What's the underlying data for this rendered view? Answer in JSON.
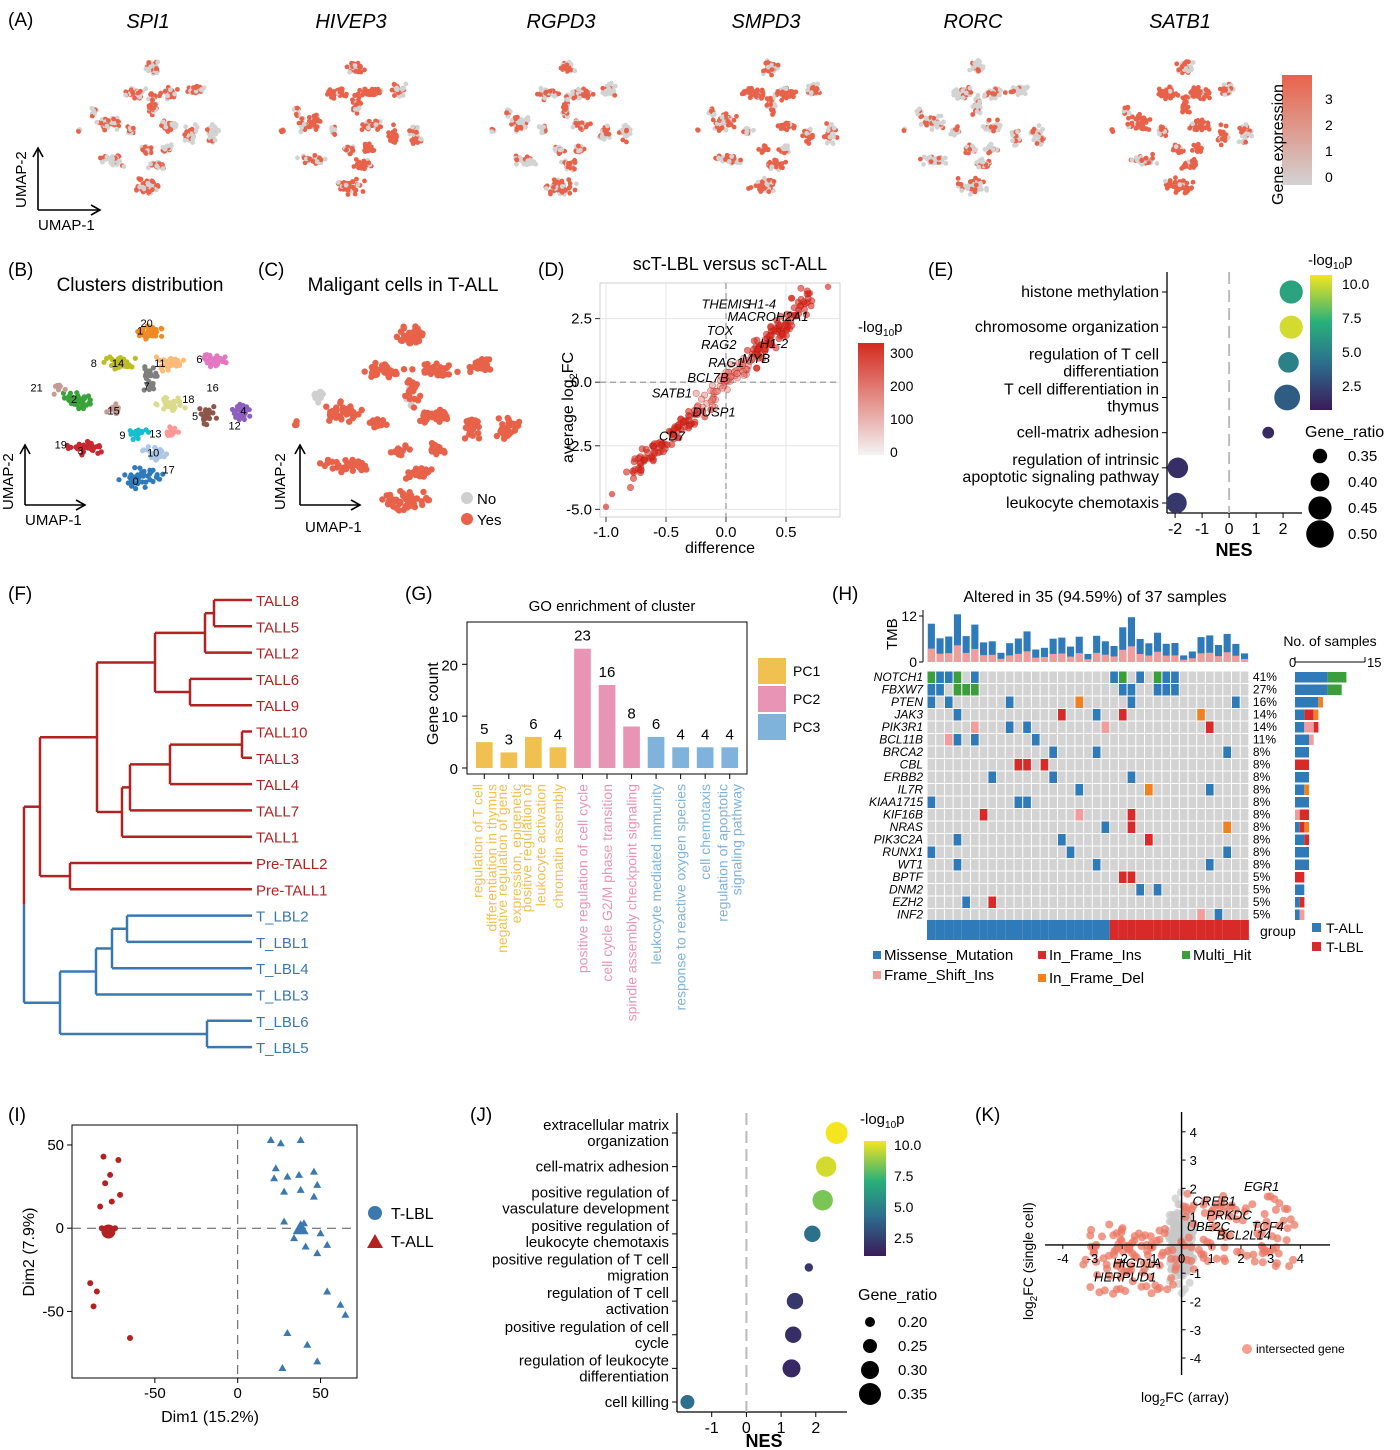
{
  "panel_letters": [
    "(A)",
    "(B)",
    "(C)",
    "(D)",
    "(E)",
    "(F)",
    "(G)",
    "(H)",
    "(I)",
    "(J)",
    "(K)"
  ],
  "colors": {
    "expr_high": "#e8624a",
    "expr_low": "#d3d3d3",
    "tall": "#b22222",
    "tlbl": "#3b78b0",
    "pc1": "#f0c050",
    "pc2": "#e895b5",
    "pc3": "#7fb3dc",
    "missense": "#2f7ab8",
    "frameshift": "#f29c9c",
    "inframe_ins": "#d92a2a",
    "inframe_del": "#f08020",
    "multi": "#3a9e3a",
    "grey_cell": "#d3d3d3"
  },
  "panelA": {
    "genes": [
      "SPI1",
      "HIVEP3",
      "RGPD3",
      "SMPD3",
      "RORC",
      "SATB1"
    ],
    "xlabel": "UMAP-1",
    "ylabel": "UMAP-2",
    "legend_title": "Gene expression",
    "legend_ticks": [
      "3",
      "2",
      "1",
      "0"
    ]
  },
  "panelB": {
    "title": "Clusters distribution",
    "xlabel": "UMAP-1",
    "ylabel": "UMAP-2",
    "clusters": [
      "0",
      "1",
      "2",
      "3",
      "4",
      "5",
      "6",
      "7",
      "8",
      "9",
      "10",
      "11",
      "12",
      "13",
      "14",
      "15",
      "16",
      "17",
      "18",
      "19",
      "20",
      "21"
    ]
  },
  "panelC": {
    "title": "Maligant cells in T-ALL",
    "xlabel": "UMAP-1",
    "ylabel": "UMAP-2",
    "legend": [
      "No",
      "Yes"
    ]
  },
  "chart_data": [
    {
      "panel": "D",
      "type": "scatter",
      "title": "scT-LBL versus scT-ALL",
      "xlabel": "difference",
      "ylabel": "average log2FC",
      "xlim": [
        -1.05,
        0.95
      ],
      "ylim": [
        -5.3,
        3.9
      ],
      "xticks": [
        "-1.0",
        "-0.5",
        "0.0",
        "0.5"
      ],
      "yticks": [
        "2.5",
        "0.0",
        "-2.5",
        "-5.0"
      ],
      "color_title": "-log10p",
      "color_ticks": [
        "300",
        "200",
        "100",
        "0"
      ],
      "labels": [
        {
          "gene": "THEMIS",
          "x": 0.0,
          "y": 2.9
        },
        {
          "gene": "H1-4",
          "x": 0.3,
          "y": 2.9
        },
        {
          "gene": "MACROH2A1",
          "x": 0.35,
          "y": 2.4
        },
        {
          "gene": "TOX",
          "x": -0.05,
          "y": 1.85
        },
        {
          "gene": "RAG2",
          "x": -0.06,
          "y": 1.3
        },
        {
          "gene": "H1-2",
          "x": 0.4,
          "y": 1.35
        },
        {
          "gene": "RAG1",
          "x": 0.0,
          "y": 0.6
        },
        {
          "gene": "MYB",
          "x": 0.25,
          "y": 0.75
        },
        {
          "gene": "BCL7B",
          "x": -0.15,
          "y": 0.0
        },
        {
          "gene": "SATB1",
          "x": -0.45,
          "y": -0.6
        },
        {
          "gene": "DUSP1",
          "x": -0.1,
          "y": -1.35
        },
        {
          "gene": "CD7",
          "x": -0.45,
          "y": -2.3
        }
      ]
    },
    {
      "panel": "E",
      "type": "scatter",
      "xlabel": "NES",
      "xlim": [
        -2.3,
        2.7
      ],
      "xticks": [
        "-2",
        "-1",
        "0",
        "1",
        "2"
      ],
      "color_title": "-log10p",
      "color_ticks": [
        "10.0",
        "7.5",
        "5.0",
        "2.5"
      ],
      "size_title": "Gene_ratio",
      "size_ticks": [
        "0.35",
        "0.40",
        "0.45",
        "0.50"
      ],
      "terms": [
        {
          "l1": "histone methylation",
          "l2": "",
          "nes": 2.3,
          "logp": 6.5,
          "ratio": 0.45
        },
        {
          "l1": "chromosome organization",
          "l2": "",
          "nes": 2.3,
          "logp": 9.5,
          "ratio": 0.45
        },
        {
          "l1": "regulation of T cell",
          "l2": "differentiation",
          "nes": 2.2,
          "logp": 5.2,
          "ratio": 0.42
        },
        {
          "l1": "T cell differentiation in",
          "l2": "thymus",
          "nes": 2.15,
          "logp": 3.8,
          "ratio": 0.48
        },
        {
          "l1": "cell-matrix adhesion",
          "l2": "",
          "nes": 1.45,
          "logp": 2.0,
          "ratio": 0.32
        },
        {
          "l1": "regulation of intrinsic",
          "l2": "apoptotic signaling pathway",
          "nes": -1.9,
          "logp": 2.2,
          "ratio": 0.42
        },
        {
          "l1": "leukocyte chemotaxis",
          "l2": "",
          "nes": -1.95,
          "logp": 2.5,
          "ratio": 0.42
        }
      ]
    },
    {
      "panel": "G",
      "type": "bar",
      "title": "GO enrichment of cluster",
      "ylabel": "Gene count",
      "ylim": [
        0,
        27
      ],
      "yticks": [
        "0",
        "10",
        "20"
      ],
      "legend": [
        "PC1",
        "PC2",
        "PC3"
      ],
      "categories": [
        {
          "l1": "regulation of T cell",
          "l2": "differentiation in thymus",
          "v": 5,
          "g": "PC1"
        },
        {
          "l1": "negative regulation of gene",
          "l2": "expression, epigenetic",
          "v": 3,
          "g": "PC1"
        },
        {
          "l1": "positive regulation of",
          "l2": "leukocyte activation",
          "v": 6,
          "g": "PC1"
        },
        {
          "l1": "chromatin assembly",
          "l2": "",
          "v": 4,
          "g": "PC1"
        },
        {
          "l1": "positive regulation of cell cycle",
          "l2": "",
          "v": 23,
          "g": "PC2"
        },
        {
          "l1": "cell cycle G2/M phase transition",
          "l2": "",
          "v": 16,
          "g": "PC2"
        },
        {
          "l1": "spindle assembly checkpoint signaling",
          "l2": "",
          "v": 8,
          "g": "PC2"
        },
        {
          "l1": "leukocyte mediated immunity",
          "l2": "",
          "v": 6,
          "g": "PC3"
        },
        {
          "l1": "response to reactive oxygen species",
          "l2": "",
          "v": 4,
          "g": "PC3"
        },
        {
          "l1": "cell chemotaxis",
          "l2": "",
          "v": 4,
          "g": "PC3"
        },
        {
          "l1": "regulation of apoptotic",
          "l2": "signaling pathway",
          "v": 4,
          "g": "PC3"
        }
      ]
    },
    {
      "panel": "I",
      "type": "scatter",
      "xlabel": "Dim1 (15.2%)",
      "ylabel": "Dim2 (7.9%)",
      "xlim": [
        -100,
        72
      ],
      "ylim": [
        -90,
        62
      ],
      "xticks": [
        "-50",
        "0",
        "50"
      ],
      "yticks": [
        "50",
        "0",
        "-50"
      ],
      "legend": [
        "T-LBL",
        "T-ALL"
      ],
      "tall": [
        [
          -81,
          43
        ],
        [
          -80,
          27
        ],
        [
          -72,
          41
        ],
        [
          -77,
          32
        ],
        [
          -76,
          16
        ],
        [
          -71,
          20
        ],
        [
          -83,
          13
        ],
        [
          -82,
          0
        ],
        [
          -78,
          -2
        ],
        [
          -74,
          0
        ],
        [
          -89,
          -33
        ],
        [
          -85,
          -38
        ],
        [
          -87,
          -47
        ],
        [
          -65,
          -66
        ]
      ],
      "tall_centroid": [
        -78,
        -2
      ],
      "tlbl": [
        [
          20,
          53
        ],
        [
          26,
          51
        ],
        [
          38,
          53
        ],
        [
          23,
          36
        ],
        [
          30,
          31
        ],
        [
          22,
          30
        ],
        [
          37,
          32
        ],
        [
          38,
          23
        ],
        [
          46,
          34
        ],
        [
          48,
          26
        ],
        [
          28,
          22
        ],
        [
          46,
          19
        ],
        [
          28,
          4
        ],
        [
          34,
          -6
        ],
        [
          40,
          3
        ],
        [
          41,
          -11
        ],
        [
          50,
          -3
        ],
        [
          48,
          -15
        ],
        [
          54,
          -10
        ],
        [
          54,
          -38
        ],
        [
          62,
          -46
        ],
        [
          65,
          -52
        ],
        [
          30,
          -63
        ],
        [
          42,
          -70
        ],
        [
          48,
          -80
        ],
        [
          27,
          -84
        ]
      ],
      "tlbl_centroid": [
        38,
        0
      ]
    },
    {
      "panel": "J",
      "type": "scatter",
      "xlabel": "NES",
      "xlim": [
        -2.0,
        2.9
      ],
      "xticks": [
        "-1",
        "0",
        "1",
        "2"
      ],
      "color_title": "-log10p",
      "color_ticks": [
        "10.0",
        "7.5",
        "5.0",
        "2.5"
      ],
      "size_title": "Gene_ratio",
      "size_ticks": [
        "0.20",
        "0.25",
        "0.30",
        "0.35"
      ],
      "terms": [
        {
          "l1": "extracellular matrix",
          "l2": "organization",
          "nes": 2.6,
          "logp": 10.0,
          "ratio": 0.35
        },
        {
          "l1": "cell-matrix adhesion",
          "l2": "",
          "nes": 2.3,
          "logp": 9.5,
          "ratio": 0.33
        },
        {
          "l1": "positive regulation of",
          "l2": "vasculature development",
          "nes": 2.2,
          "logp": 8.2,
          "ratio": 0.33
        },
        {
          "l1": "positive regulation of",
          "l2": "leukocyte chemotaxis",
          "nes": 1.9,
          "logp": 4.5,
          "ratio": 0.28
        },
        {
          "l1": "positive regulation of T cell",
          "l2": "migration",
          "nes": 1.8,
          "logp": 2.5,
          "ratio": 0.18
        },
        {
          "l1": "regulation of T cell",
          "l2": "activation",
          "nes": 1.4,
          "logp": 2.5,
          "ratio": 0.28
        },
        {
          "l1": "positive regulation of cell",
          "l2": "cycle",
          "nes": 1.35,
          "logp": 2.2,
          "ratio": 0.28
        },
        {
          "l1": "regulation of leukocyte",
          "l2": "differentiation",
          "nes": 1.3,
          "logp": 2.0,
          "ratio": 0.3
        },
        {
          "l1": "cell killing",
          "l2": "",
          "nes": -1.7,
          "logp": 4.5,
          "ratio": 0.25
        }
      ]
    },
    {
      "panel": "K",
      "type": "scatter",
      "xlabel": "log2FC (array)",
      "ylabel": "log2FC (single cell)",
      "xlim": [
        -4.6,
        5.0
      ],
      "ylim": [
        -4.6,
        4.7
      ],
      "xticks": [
        "-4",
        "-3",
        "-2",
        "-1",
        "0",
        "1",
        "2",
        "3",
        "4"
      ],
      "yticks": [
        "4",
        "3",
        "2",
        "1",
        "-1",
        "-2",
        "-3",
        "-4"
      ],
      "legend": "intersected gene",
      "labels": [
        {
          "gene": "EGR1",
          "x": 2.7,
          "y": 1.9
        },
        {
          "gene": "CREB1",
          "x": 1.1,
          "y": 1.4
        },
        {
          "gene": "PRKDC",
          "x": 1.6,
          "y": 0.9
        },
        {
          "gene": "UBE2C",
          "x": 0.9,
          "y": 0.5
        },
        {
          "gene": "TCF4",
          "x": 2.9,
          "y": 0.5
        },
        {
          "gene": "BCL2L14",
          "x": 2.1,
          "y": 0.2
        },
        {
          "gene": "HIGD1A",
          "x": -1.5,
          "y": -0.8
        },
        {
          "gene": "HERPUD1",
          "x": -1.9,
          "y": -1.3
        }
      ]
    }
  ],
  "panelF": {
    "leaves": [
      {
        "name": "TALL8",
        "group": "tall"
      },
      {
        "name": "TALL5",
        "group": "tall"
      },
      {
        "name": "TALL2",
        "group": "tall"
      },
      {
        "name": "TALL6",
        "group": "tall"
      },
      {
        "name": "TALL9",
        "group": "tall"
      },
      {
        "name": "TALL10",
        "group": "tall"
      },
      {
        "name": "TALL3",
        "group": "tall"
      },
      {
        "name": "TALL4",
        "group": "tall"
      },
      {
        "name": "TALL7",
        "group": "tall"
      },
      {
        "name": "TALL1",
        "group": "tall"
      },
      {
        "name": "Pre-TALL2",
        "group": "tall"
      },
      {
        "name": "Pre-TALL1",
        "group": "tall"
      },
      {
        "name": "T_LBL2",
        "group": "tlbl"
      },
      {
        "name": "T_LBL1",
        "group": "tlbl"
      },
      {
        "name": "T_LBL4",
        "group": "tlbl"
      },
      {
        "name": "T_LBL3",
        "group": "tlbl"
      },
      {
        "name": "T_LBL6",
        "group": "tlbl"
      },
      {
        "name": "T_LBL5",
        "group": "tlbl"
      }
    ]
  },
  "panelH": {
    "title": "Altered in 35 (94.59%) of 37 samples",
    "tmb_label": "TMB",
    "tmb_ticks": [
      "12",
      "0"
    ],
    "samples_label": "No. of samples",
    "samples_ticks": [
      "0",
      "15"
    ],
    "group_label": "group",
    "group_legend": [
      "T-ALL",
      "T-LBL"
    ],
    "n_samples": 37,
    "n_tall": 21,
    "genes": [
      "NOTCH1",
      "FBXW7",
      "PTEN",
      "JAK3",
      "PIK3R1",
      "BCL11B",
      "BRCA2",
      "CBL",
      "ERBB2",
      "IL7R",
      "KIAA1715",
      "KIF16B",
      "NRAS",
      "PIK3C2A",
      "RUNX1",
      "WT1",
      "BPTF",
      "DNM2",
      "EZH2",
      "INF2"
    ],
    "pcts": [
      "41%",
      "27%",
      "16%",
      "14%",
      "14%",
      "11%",
      "8%",
      "8%",
      "8%",
      "8%",
      "8%",
      "8%",
      "8%",
      "8%",
      "8%",
      "8%",
      "5%",
      "5%",
      "5%",
      "5%"
    ],
    "mut_legend": [
      "Missense_Mutation",
      "In_Frame_Ins",
      "Multi_Hit",
      "Frame_Shift_Ins",
      "In_Frame_Del"
    ]
  }
}
